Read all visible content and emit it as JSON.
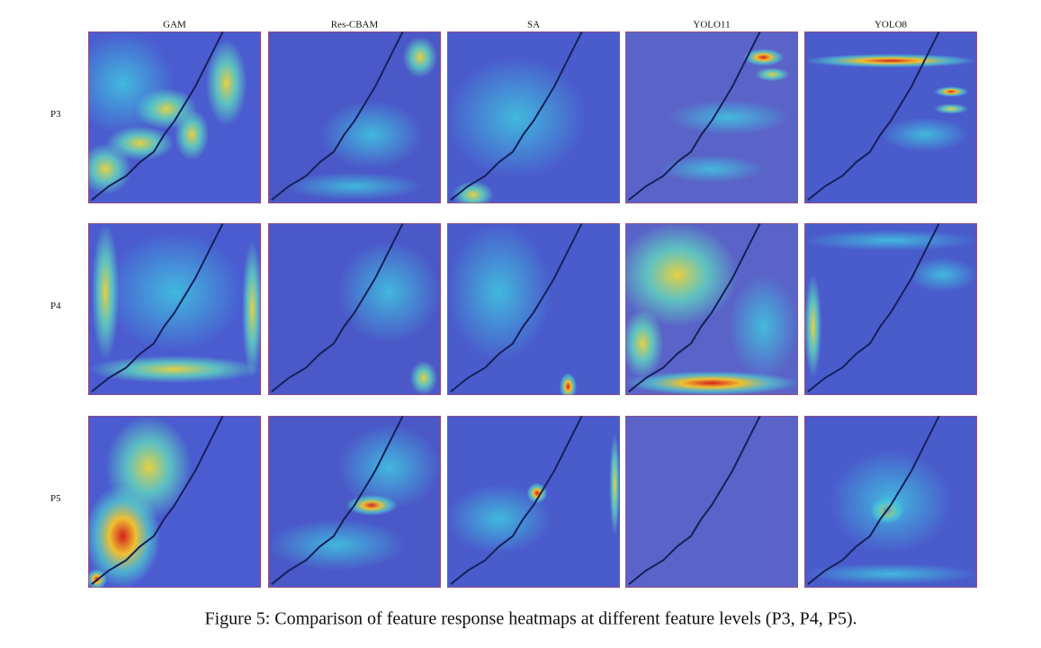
{
  "columns": [
    "GAM",
    "Res-CBAM",
    "SA",
    "YOLO11",
    "YOLO8"
  ],
  "rows": [
    "P3",
    "P4",
    "P5"
  ],
  "caption": "Figure 5: Comparison of feature response heatmaps at different feature levels (P3, P4, P5)."
}
